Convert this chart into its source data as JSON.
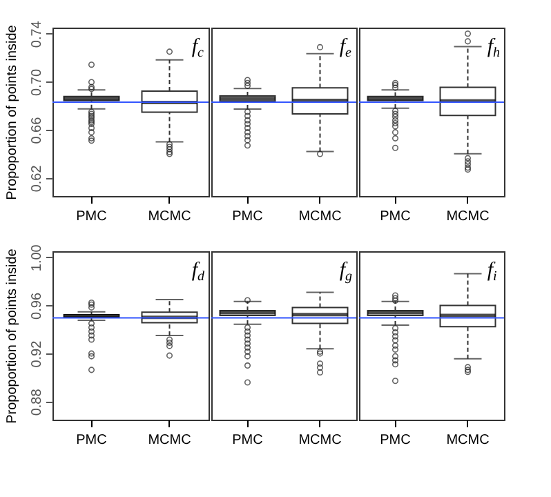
{
  "chart_data": [
    {
      "type": "box",
      "categories": [
        "PMC",
        "MCMC"
      ],
      "ylabel": "Propoportion of points inside",
      "ylim": [
        0.605,
        0.745
      ],
      "yticks": [
        0.62,
        0.66,
        {
          "value": 0.7,
          "label": "0.70"
        },
        0.74
      ],
      "ref_lines": [
        {
          "axis": "y",
          "value": 0.683,
          "color": "#3355ff"
        }
      ],
      "annotations": [
        "f$_{c}$"
      ],
      "boxes": [
        {
          "low": 0.6774,
          "q1": 0.6844,
          "median": 0.6861,
          "q3": 0.6878,
          "high": 0.6932,
          "outliers": [
            0.7142,
            0.6997,
            0.6956,
            0.694,
            0.675,
            0.6733,
            0.6716,
            0.67,
            0.668,
            0.6665,
            0.665,
            0.6615,
            0.658,
            0.653,
            0.651
          ]
        },
        {
          "low": 0.65,
          "q1": 0.6747,
          "median": 0.6828,
          "q3": 0.6922,
          "high": 0.7182,
          "outliers": [
            0.725,
            0.648,
            0.6459,
            0.6439,
            0.6416,
            0.64
          ]
        }
      ]
    },
    {
      "type": "box",
      "categories": [
        "PMC",
        "MCMC"
      ],
      "tick_labels": "x",
      "ylim": [
        0.605,
        0.745
      ],
      "ref_lines": [
        {
          "axis": "y",
          "value": 0.683,
          "color": "#3355ff"
        }
      ],
      "annotations": [
        "f$_{e}$"
      ],
      "boxes": [
        {
          "low": 0.6773,
          "q1": 0.6841,
          "median": 0.686,
          "q3": 0.6882,
          "high": 0.6943,
          "outliers": [
            0.7014,
            0.699,
            0.6966,
            0.675,
            0.6716,
            0.668,
            0.665,
            0.6615,
            0.658,
            0.6548,
            0.6514,
            0.647
          ]
        },
        {
          "low": 0.642,
          "q1": 0.6733,
          "median": 0.6845,
          "q3": 0.695,
          "high": 0.7233,
          "outliers": [
            0.7287,
            0.64
          ]
        }
      ]
    },
    {
      "type": "box",
      "categories": [
        "PMC",
        "MCMC"
      ],
      "tick_labels": "x",
      "ylim": [
        0.605,
        0.745
      ],
      "ref_lines": [
        {
          "axis": "y",
          "value": 0.683,
          "color": "#3355ff"
        }
      ],
      "annotations": [
        "f$_{h}$"
      ],
      "boxes": [
        {
          "low": 0.678,
          "q1": 0.6844,
          "median": 0.6861,
          "q3": 0.6878,
          "high": 0.6932,
          "outliers": [
            0.699,
            0.6973,
            0.695,
            0.6757,
            0.6733,
            0.671,
            0.668,
            0.6655,
            0.663,
            0.658,
            0.653,
            0.645
          ]
        },
        {
          "low": 0.6402,
          "q1": 0.672,
          "median": 0.6841,
          "q3": 0.6953,
          "high": 0.7292,
          "outliers": [
            0.74,
            0.7336,
            0.6365,
            0.6338,
            0.6314,
            0.6287,
            0.627
          ]
        }
      ]
    },
    {
      "type": "box",
      "categories": [
        "PMC",
        "MCMC"
      ],
      "ylabel": "Propoportion of points inside",
      "ylim": [
        0.865,
        1.005
      ],
      "yticks": [
        0.88,
        0.92,
        0.96,
        {
          "value": 1.0,
          "label": "1.00"
        }
      ],
      "ref_lines": [
        {
          "axis": "y",
          "value": 0.9496,
          "color": "#3355ff"
        }
      ],
      "annotations": [
        "f$_{d}$"
      ],
      "boxes": [
        {
          "low": 0.9476,
          "q1": 0.9503,
          "median": 0.9513,
          "q3": 0.9522,
          "high": 0.9546,
          "outliers": [
            0.9623,
            0.9607,
            0.9583,
            0.945,
            0.9416,
            0.9383,
            0.935,
            0.9316,
            0.92,
            0.9177,
            0.9064
          ]
        },
        {
          "low": 0.935,
          "q1": 0.9456,
          "median": 0.95,
          "q3": 0.9543,
          "high": 0.9649,
          "outliers": [
            0.9316,
            0.929,
            0.9263,
            0.9183
          ]
        }
      ]
    },
    {
      "type": "box",
      "categories": [
        "PMC",
        "MCMC"
      ],
      "tick_labels": "x",
      "ylim": [
        0.865,
        1.005
      ],
      "ref_lines": [
        {
          "axis": "y",
          "value": 0.9496,
          "color": "#3355ff"
        }
      ],
      "annotations": [
        "f$_{g}$"
      ],
      "boxes": [
        {
          "low": 0.9443,
          "q1": 0.9516,
          "median": 0.954,
          "q3": 0.9557,
          "high": 0.9633,
          "outliers": [
            0.9643,
            0.9416,
            0.9383,
            0.935,
            0.9316,
            0.9283,
            0.925,
            0.9216,
            0.9177,
            0.91,
            0.896
          ]
        },
        {
          "low": 0.924,
          "q1": 0.945,
          "median": 0.9523,
          "q3": 0.9583,
          "high": 0.9709,
          "outliers": [
            0.9216,
            0.92,
            0.9116,
            0.9083,
            0.9043
          ]
        }
      ]
    },
    {
      "type": "box",
      "categories": [
        "PMC",
        "MCMC"
      ],
      "tick_labels": "x",
      "ylim": [
        0.865,
        1.005
      ],
      "ref_lines": [
        {
          "axis": "y",
          "value": 0.9496,
          "color": "#3355ff"
        }
      ],
      "annotations": [
        "f$_{i}$"
      ],
      "boxes": [
        {
          "low": 0.9436,
          "q1": 0.9516,
          "median": 0.954,
          "q3": 0.9557,
          "high": 0.9633,
          "outliers": [
            0.9683,
            0.966,
            0.964,
            0.941,
            0.9376,
            0.9343,
            0.931,
            0.9266,
            0.9233,
            0.9177,
            0.9143,
            0.911,
            0.8973
          ]
        },
        {
          "low": 0.9156,
          "q1": 0.9423,
          "median": 0.9516,
          "q3": 0.96,
          "high": 0.9863,
          "outliers": [
            0.9087,
            0.9064,
            0.9047
          ]
        }
      ]
    }
  ]
}
